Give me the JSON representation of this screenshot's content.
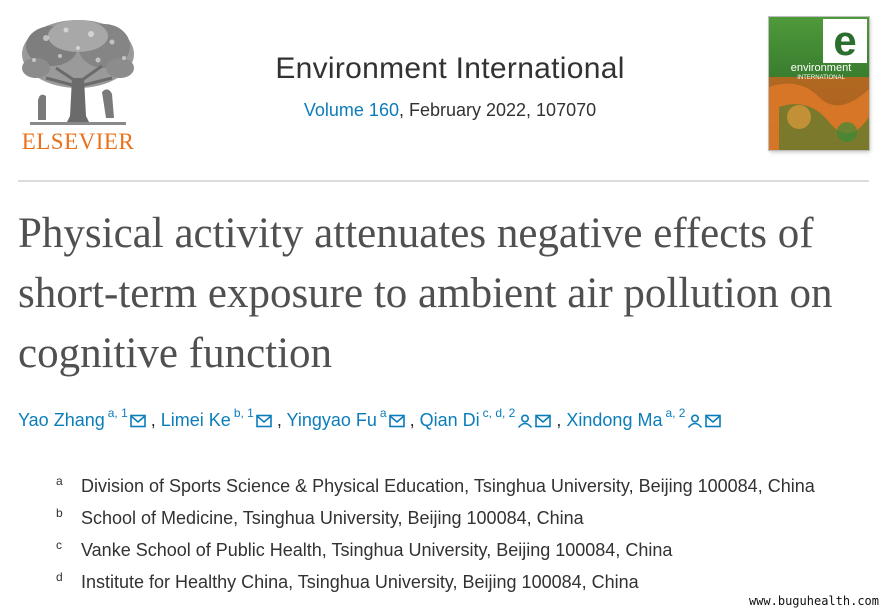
{
  "publisher": {
    "name": "ELSEVIER"
  },
  "journal": {
    "name": "Environment International",
    "volume_link": "Volume 160",
    "issue_rest": ", February 2022, 107070",
    "cover_letter": "e",
    "cover_line1": "environment",
    "cover_line2": "INTERNATIONAL"
  },
  "article": {
    "title": "Physical activity attenuates negative effects of short-term exposure to ambient air pollution on cognitive function"
  },
  "authors": [
    {
      "name": "Yao Zhang",
      "sup": "a, 1",
      "icons": [
        "email-icon"
      ]
    },
    {
      "name": "Limei Ke",
      "sup": "b, 1",
      "icons": [
        "email-icon"
      ]
    },
    {
      "name": "Yingyao Fu",
      "sup": "a",
      "icons": [
        "email-icon"
      ]
    },
    {
      "name": "Qian Di",
      "sup": "c, d, 2",
      "icons": [
        "person-icon",
        "email-icon"
      ]
    },
    {
      "name": "Xindong Ma",
      "sup": "a, 2",
      "icons": [
        "person-icon",
        "email-icon"
      ]
    }
  ],
  "affiliations": [
    {
      "label": "a",
      "text": "Division of Sports Science & Physical Education, Tsinghua University, Beijing 100084, China"
    },
    {
      "label": "b",
      "text": "School of Medicine, Tsinghua University, Beijing 100084, China"
    },
    {
      "label": "c",
      "text": "Vanke School of Public Health, Tsinghua University, Beijing 100084, China"
    },
    {
      "label": "d",
      "text": "Institute for Healthy China, Tsinghua University, Beijing 100084, China"
    }
  ],
  "watermark": "www.buguhealth.com",
  "colors": {
    "link": "#0c7dbb",
    "brand_orange": "#e9711c",
    "title_gray": "#505050"
  }
}
